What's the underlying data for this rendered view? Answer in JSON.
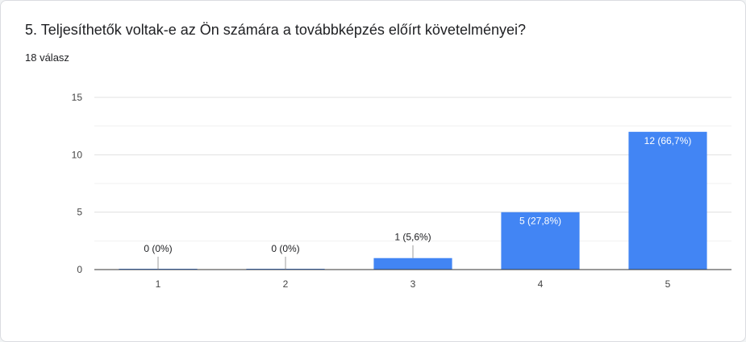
{
  "question": {
    "title": "5. Teljesíthetők voltak-e az Ön számára a továbbképzés előírt követelményei?",
    "responses": "18 válasz"
  },
  "colors": {
    "bar": "#4285f4",
    "grid": "#e0e0e0",
    "axis": "#333333",
    "label_outside": "#202124",
    "label_inside": "#ffffff"
  },
  "chart_data": {
    "type": "bar",
    "title": "",
    "xlabel": "",
    "ylabel": "",
    "categories": [
      "1",
      "2",
      "3",
      "4",
      "5"
    ],
    "values": [
      0,
      0,
      1,
      5,
      12
    ],
    "data_labels": [
      "0 (0%)",
      "0 (0%)",
      "1 (5,6%)",
      "5 (27,8%)",
      "12 (66,7%)"
    ],
    "ylim": [
      0,
      15
    ],
    "yticks": [
      0,
      5,
      10,
      15
    ],
    "grid": true,
    "legend": "none"
  }
}
